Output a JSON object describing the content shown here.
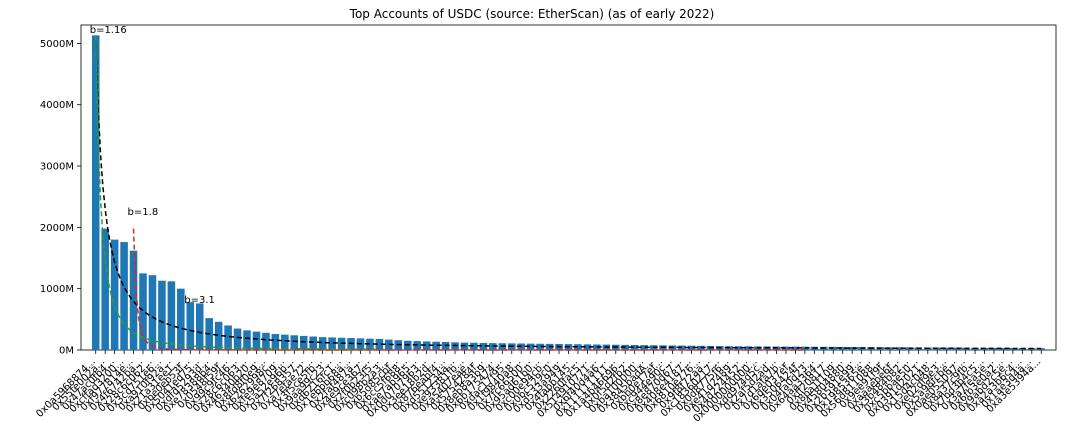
{
  "chart_data": {
    "type": "bar",
    "title": "Top Accounts of USDC (source: EtherScan) (as of early 2022)",
    "xlabel": "",
    "ylabel": "",
    "ylim": [
      0,
      5300
    ],
    "yticks": [
      0,
      1000,
      2000,
      3000,
      4000,
      5000
    ],
    "ytick_labels": [
      "0M",
      "1000M",
      "2000M",
      "3000M",
      "4000M",
      "5000M"
    ],
    "bar_color": "#1f77b4",
    "grid": false,
    "categories": [
      "0x0a5968874...",
      "0x55fe002a...",
      "0x47ac0fb4...",
      "0xcffad3200...",
      "0xf977814e...",
      "0x4f6742ba...",
      "0x28c6c062...",
      "0x3cd751e6...",
      "0xa910f92a...",
      "0x21a31ee1...",
      "0xbe0eb53f...",
      "0x5041ed75...",
      "0xdfd5293d...",
      "0xe78388b4...",
      "0x0548f59f...",
      "0x99c9fc46...",
      "0x28c6c063...",
      "0x46340b20...",
      "0x8fd8f0e9...",
      "0x6262998c...",
      "0xfe9e8709...",
      "0x5a52e96b...",
      "0x7f268357...",
      "0xa7efae72...",
      "0x3f5ce5fb...",
      "0x9aa99c23...",
      "0xd6216fc1...",
      "0x1e6bb68a...",
      "0x2faf487a...",
      "0x4e9ce367...",
      "0x2f0b23f5...",
      "0xc098b2a3...",
      "0xb5d85cbf...",
      "0x6cc5f688...",
      "0xae7ab965...",
      "0x0d0707963...",
      "0x3ee18b2d...",
      "0x876eabf4...",
      "0xd551234a...",
      "0xe93381fb...",
      "0xa5407eae...",
      "0x5754284f...",
      "0x8eb8a3b9...",
      "0x6b175474...",
      "0xdac17f95...",
      "0x1f9840a8...",
      "0x7fc66500...",
      "0x95ad61b0...",
      "0xc00e94cb...",
      "0x0bc529c0...",
      "0xd533a949...",
      "0x4fabb145...",
      "0x2260fac5...",
      "0x514910771...",
      "0x6f40d4a6...",
      "0x111111111...",
      "0x1a4b46696...",
      "0x0f5d2fb2...",
      "0xba100000...",
      "0x3845badA...",
      "0xbb0e17ef...",
      "0xc944e90c...",
      "0x8e870d67...",
      "0x408e4187...",
      "0x6810e776...",
      "0x9f8f72aa...",
      "0xc18360217...",
      "0x0d8775f6...",
      "0xe41d2489...",
      "0x4d224452...",
      "0x0000000000...",
      "0xdd974d5c...",
      "0x2af5d2ad...",
      "0x7d1afa7b...",
      "0x6de037ef...",
      "0x3506424f...",
      "0x04fa0d23...",
      "0x64aa3364...",
      "0xff20817...",
      "0x8ba1f109...",
      "0x45804880...",
      "0x2b591e99...",
      "0x1985365e...",
      "0x56d811088...",
      "0x9ee91f9f...",
      "0xaaaebe6f...",
      "0x3b484b82...",
      "0xc5bbae50...",
      "0x0391d2021...",
      "0x15d4c048...",
      "0xe02df9e3...",
      "0x5a98fcbe...",
      "0x0ae055097...",
      "0x8a37c9fb...",
      "0x7bd3b4c5...",
      "0x3a7fea5e...",
      "0x6fb3e0a2...",
      "0x9abd2c5e...",
      "0xa2a3b6c4...",
      "0x1ae3d4a...",
      "0xa3e5394a..."
    ],
    "values": [
      5130,
      1980,
      1800,
      1760,
      1620,
      1250,
      1220,
      1130,
      1120,
      1000,
      780,
      760,
      520,
      460,
      400,
      350,
      320,
      300,
      280,
      260,
      250,
      240,
      230,
      220,
      210,
      205,
      200,
      195,
      190,
      185,
      180,
      170,
      160,
      150,
      145,
      140,
      135,
      130,
      125,
      120,
      118,
      115,
      112,
      110,
      108,
      106,
      104,
      102,
      100,
      98,
      96,
      94,
      92,
      90,
      88,
      86,
      84,
      82,
      80,
      78,
      76,
      74,
      72,
      70,
      68,
      66,
      64,
      62,
      61,
      60,
      59,
      58,
      57,
      56,
      55,
      54,
      53,
      52,
      51,
      50,
      49,
      48,
      47,
      46,
      45,
      44,
      43,
      42,
      41,
      40,
      39,
      38,
      37,
      36,
      35,
      34,
      33,
      32,
      31,
      30,
      29
    ],
    "fits": [
      {
        "label": "b=1.16",
        "color": "#000000",
        "start_index": 0,
        "end_index": 100,
        "amplitude": 5130,
        "b": 1.16
      },
      {
        "label": "b=1.8",
        "color": "#2ca02c",
        "start_index": 0,
        "end_index": 30,
        "amplitude": 5130,
        "b": 1.8
      },
      {
        "label": "b=3.1",
        "color": "#d62728",
        "start_index": 4,
        "end_index": 75,
        "amplitude": 1980,
        "b": 3.1
      }
    ],
    "annotations": [
      {
        "text": "b=1.16",
        "x": 0,
        "y": 5170
      },
      {
        "text": "b=1.8",
        "x": 4,
        "y": 2200
      },
      {
        "text": "b=3.1",
        "x": 10,
        "y": 770
      }
    ]
  }
}
